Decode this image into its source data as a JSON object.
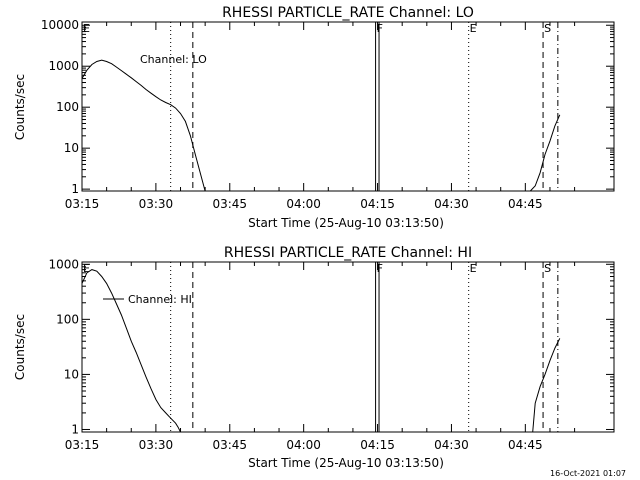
{
  "timestamp": "16-Oct-2021 01:07",
  "chart_data": [
    {
      "type": "line",
      "title": "RHESSI PARTICLE_RATE Channel: LO",
      "xlabel": "Start Time (25-Aug-10 03:13:50)",
      "ylabel": "Counts/sec",
      "y_scale": "log",
      "ylim": [
        0.9,
        12000
      ],
      "xlim_minutes": [
        0,
        108
      ],
      "x_ticks": [
        "03:15",
        "03:30",
        "03:45",
        "04:00",
        "04:15",
        "04:30",
        "04:45"
      ],
      "x_tick_minutes": [
        0,
        15,
        30,
        45,
        60,
        75,
        90
      ],
      "y_ticks": [
        "1",
        "10",
        "100",
        "1000",
        "10000"
      ],
      "y_tick_values": [
        1,
        10,
        100,
        1000,
        10000
      ],
      "legend": "Channel: LO",
      "markers": [
        {
          "label": "E",
          "minute": 0,
          "style": "dotted"
        },
        {
          "label": "",
          "minute": 18,
          "style": "dotted"
        },
        {
          "label": "",
          "minute": 22.5,
          "style": "dashed"
        },
        {
          "label": "F",
          "minute": 59.6,
          "style": "solid"
        },
        {
          "label": "",
          "minute": 60.3,
          "style": "solid"
        },
        {
          "label": "E",
          "minute": 78.5,
          "style": "dotted"
        },
        {
          "label": "S",
          "minute": 93.6,
          "style": "dashed"
        },
        {
          "label": "",
          "minute": 96.6,
          "style": "dashdot"
        }
      ],
      "series": [
        {
          "x": [
            0,
            1,
            2,
            3,
            4,
            5,
            6,
            7,
            8,
            9,
            10,
            11,
            12,
            13,
            14,
            15,
            16,
            17,
            18,
            19,
            20,
            21,
            22,
            23,
            24,
            25
          ],
          "y": [
            500,
            800,
            1100,
            1300,
            1400,
            1300,
            1150,
            950,
            780,
            640,
            520,
            420,
            340,
            270,
            220,
            180,
            150,
            130,
            115,
            95,
            70,
            45,
            20,
            7,
            2.5,
            0.9
          ]
        },
        {
          "x": [
            91,
            92,
            93,
            94,
            95,
            96,
            97
          ],
          "y": [
            0.9,
            1.2,
            2.5,
            7,
            15,
            35,
            65
          ]
        }
      ]
    },
    {
      "type": "line",
      "title": "RHESSI PARTICLE_RATE Channel: HI",
      "xlabel": "Start Time (25-Aug-10 03:13:50)",
      "ylabel": "Counts/sec",
      "y_scale": "log",
      "ylim": [
        0.9,
        1100
      ],
      "xlim_minutes": [
        0,
        108
      ],
      "x_ticks": [
        "03:15",
        "03:30",
        "03:45",
        "04:00",
        "04:15",
        "04:30",
        "04:45"
      ],
      "x_tick_minutes": [
        0,
        15,
        30,
        45,
        60,
        75,
        90
      ],
      "y_ticks": [
        "1",
        "10",
        "100",
        "1000"
      ],
      "y_tick_values": [
        1,
        10,
        100,
        1000
      ],
      "legend": "Channel: HI",
      "markers": [
        {
          "label": "E",
          "minute": 0,
          "style": "dotted"
        },
        {
          "label": "",
          "minute": 18,
          "style": "dotted"
        },
        {
          "label": "",
          "minute": 22.5,
          "style": "dashed"
        },
        {
          "label": "F",
          "minute": 59.6,
          "style": "solid"
        },
        {
          "label": "",
          "minute": 60.3,
          "style": "solid"
        },
        {
          "label": "E",
          "minute": 78.5,
          "style": "dotted"
        },
        {
          "label": "S",
          "minute": 93.6,
          "style": "dashed"
        },
        {
          "label": "",
          "minute": 96.6,
          "style": "dashdot"
        }
      ],
      "series": [
        {
          "x": [
            0,
            1,
            2,
            3,
            4,
            5,
            6,
            7,
            8,
            9,
            10,
            11,
            12,
            13,
            14,
            15,
            16,
            17,
            18,
            19,
            19.5,
            20
          ],
          "y": [
            450,
            700,
            800,
            750,
            600,
            450,
            300,
            190,
            120,
            70,
            40,
            25,
            15,
            9,
            5.5,
            3.5,
            2.5,
            2,
            1.6,
            1.3,
            1.1,
            0.9
          ]
        },
        {
          "x": [
            91.5,
            92,
            93,
            94,
            95,
            96,
            97
          ],
          "y": [
            0.9,
            3,
            6,
            10,
            18,
            30,
            45
          ]
        }
      ]
    }
  ]
}
